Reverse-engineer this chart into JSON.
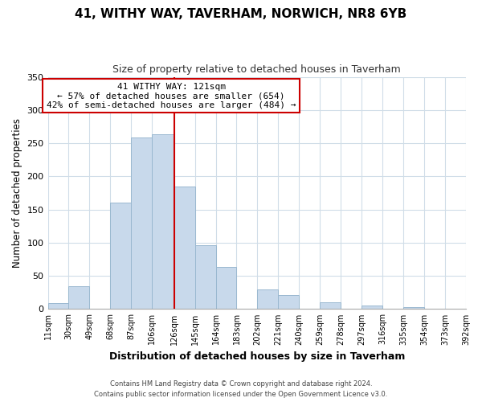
{
  "title": "41, WITHY WAY, TAVERHAM, NORWICH, NR8 6YB",
  "subtitle": "Size of property relative to detached houses in Taverham",
  "xlabel": "Distribution of detached houses by size in Taverham",
  "ylabel": "Number of detached properties",
  "bin_edges": [
    11,
    30,
    49,
    68,
    87,
    106,
    126,
    145,
    164,
    183,
    202,
    221,
    240,
    259,
    278,
    297,
    316,
    335,
    354,
    373,
    392
  ],
  "bar_heights": [
    9,
    34,
    0,
    161,
    258,
    263,
    185,
    96,
    63,
    0,
    29,
    21,
    0,
    10,
    0,
    5,
    0,
    3,
    0,
    1
  ],
  "bar_color": "#c8d9eb",
  "bar_edgecolor": "#9ab8d0",
  "vline_x": 126,
  "vline_color": "#cc0000",
  "ylim": [
    0,
    350
  ],
  "yticks": [
    0,
    50,
    100,
    150,
    200,
    250,
    300,
    350
  ],
  "tick_labels": [
    "11sqm",
    "30sqm",
    "49sqm",
    "68sqm",
    "87sqm",
    "106sqm",
    "126sqm",
    "145sqm",
    "164sqm",
    "183sqm",
    "202sqm",
    "221sqm",
    "240sqm",
    "259sqm",
    "278sqm",
    "297sqm",
    "316sqm",
    "335sqm",
    "354sqm",
    "373sqm",
    "392sqm"
  ],
  "annotation_title": "41 WITHY WAY: 121sqm",
  "annotation_line1": "← 57% of detached houses are smaller (654)",
  "annotation_line2": "42% of semi-detached houses are larger (484) →",
  "annotation_box_color": "#ffffff",
  "annotation_box_edgecolor": "#cc0000",
  "footnote1": "Contains HM Land Registry data © Crown copyright and database right 2024.",
  "footnote2": "Contains public sector information licensed under the Open Government Licence v3.0.",
  "background_color": "#ffffff",
  "grid_color": "#d0dde8"
}
